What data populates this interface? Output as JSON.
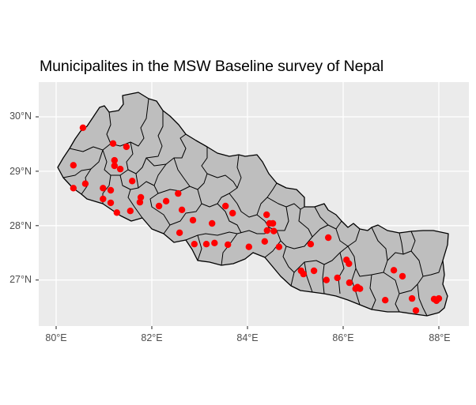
{
  "chart_data": {
    "type": "scatter",
    "subtype": "map",
    "title": "Municipalites in the MSW Baseline survey of Nepal",
    "xlabel": "",
    "ylabel": "",
    "x_ticks": [
      "80°E",
      "82°E",
      "84°E",
      "86°E",
      "88°E"
    ],
    "y_ticks": [
      "30°N",
      "29°N",
      "28°N",
      "27°N"
    ],
    "xlim": [
      79.6,
      88.7
    ],
    "ylim": [
      26.2,
      30.6
    ],
    "grid": true,
    "legend": "none",
    "base_layer": {
      "description": "Nepal district boundaries",
      "fill": "#bebebe",
      "stroke": "#000000"
    },
    "point_color": "#ff0000",
    "points": [
      {
        "lon": 80.56,
        "lat": 29.8
      },
      {
        "lon": 81.19,
        "lat": 29.51
      },
      {
        "lon": 81.47,
        "lat": 29.45
      },
      {
        "lon": 80.36,
        "lat": 29.11
      },
      {
        "lon": 80.36,
        "lat": 28.69
      },
      {
        "lon": 80.61,
        "lat": 28.77
      },
      {
        "lon": 80.98,
        "lat": 28.69
      },
      {
        "lon": 81.14,
        "lat": 28.65
      },
      {
        "lon": 80.98,
        "lat": 28.49
      },
      {
        "lon": 81.14,
        "lat": 28.42
      },
      {
        "lon": 81.27,
        "lat": 28.24
      },
      {
        "lon": 81.55,
        "lat": 28.27
      },
      {
        "lon": 81.22,
        "lat": 29.2
      },
      {
        "lon": 81.22,
        "lat": 29.1
      },
      {
        "lon": 81.34,
        "lat": 29.04
      },
      {
        "lon": 81.59,
        "lat": 28.82
      },
      {
        "lon": 81.77,
        "lat": 28.52
      },
      {
        "lon": 81.75,
        "lat": 28.43
      },
      {
        "lon": 82.15,
        "lat": 28.36
      },
      {
        "lon": 82.3,
        "lat": 28.45
      },
      {
        "lon": 82.55,
        "lat": 28.59
      },
      {
        "lon": 82.63,
        "lat": 28.29
      },
      {
        "lon": 82.86,
        "lat": 28.1
      },
      {
        "lon": 83.26,
        "lat": 28.04
      },
      {
        "lon": 82.58,
        "lat": 27.87
      },
      {
        "lon": 82.89,
        "lat": 27.66
      },
      {
        "lon": 83.14,
        "lat": 27.66
      },
      {
        "lon": 83.31,
        "lat": 27.68
      },
      {
        "lon": 83.59,
        "lat": 27.65
      },
      {
        "lon": 84.03,
        "lat": 27.61
      },
      {
        "lon": 83.54,
        "lat": 28.36
      },
      {
        "lon": 83.69,
        "lat": 28.23
      },
      {
        "lon": 84.4,
        "lat": 28.2
      },
      {
        "lon": 84.46,
        "lat": 28.04
      },
      {
        "lon": 84.53,
        "lat": 28.04
      },
      {
        "lon": 84.41,
        "lat": 27.91
      },
      {
        "lon": 84.55,
        "lat": 27.9
      },
      {
        "lon": 84.36,
        "lat": 27.71
      },
      {
        "lon": 84.66,
        "lat": 27.61
      },
      {
        "lon": 85.32,
        "lat": 27.66
      },
      {
        "lon": 85.69,
        "lat": 27.78
      },
      {
        "lon": 85.12,
        "lat": 27.17
      },
      {
        "lon": 85.17,
        "lat": 27.11
      },
      {
        "lon": 85.39,
        "lat": 27.17
      },
      {
        "lon": 85.65,
        "lat": 27.0
      },
      {
        "lon": 85.88,
        "lat": 27.04
      },
      {
        "lon": 86.07,
        "lat": 27.37
      },
      {
        "lon": 86.12,
        "lat": 27.3
      },
      {
        "lon": 86.13,
        "lat": 26.95
      },
      {
        "lon": 86.3,
        "lat": 26.87
      },
      {
        "lon": 86.35,
        "lat": 26.84
      },
      {
        "lon": 86.26,
        "lat": 26.84
      },
      {
        "lon": 86.88,
        "lat": 26.63
      },
      {
        "lon": 87.06,
        "lat": 27.18
      },
      {
        "lon": 87.24,
        "lat": 27.07
      },
      {
        "lon": 87.44,
        "lat": 26.66
      },
      {
        "lon": 87.52,
        "lat": 26.44
      },
      {
        "lon": 87.9,
        "lat": 26.65
      },
      {
        "lon": 88.0,
        "lat": 26.66
      },
      {
        "lon": 87.95,
        "lat": 26.62
      }
    ]
  },
  "colors": {
    "panel_bg": "#ebebeb",
    "grid": "#ffffff",
    "land_fill": "#bebebe",
    "border": "#000000",
    "point": "#ff0000",
    "axis_text": "#4d4d4d"
  }
}
